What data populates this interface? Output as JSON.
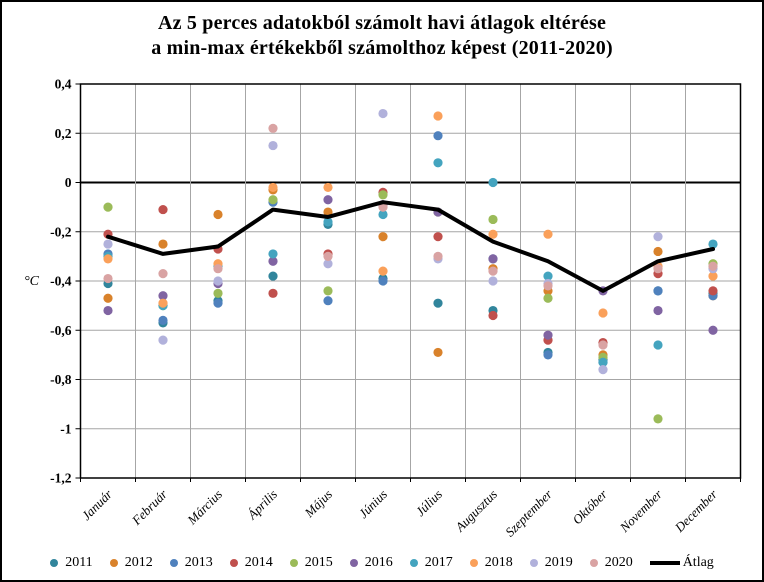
{
  "figure": {
    "title_line1": "Az 5 perces adatokból számolt havi átlagok eltérése",
    "title_line2": "a min-max értékekből számolthoz képest (2011-2020)"
  },
  "chart_data": {
    "type": "scatter",
    "title": "Az 5 perces adatokból számolt havi átlagok eltérése a min-max értékekből számolthoz képest (2011-2020)",
    "ylabel": "°C",
    "xlabel": "",
    "ylim": [
      -1.2,
      0.4
    ],
    "yticks": [
      0.4,
      0.2,
      0,
      -0.2,
      -0.4,
      -0.6,
      -0.8,
      -1,
      -1.2
    ],
    "ytick_labels": [
      "0,4",
      "0,2",
      "0",
      "-0,2",
      "-0,4",
      "-0,6",
      "-0,8",
      "-1",
      "-1,2"
    ],
    "categories": [
      "Január",
      "Február",
      "Március",
      "Április",
      "Május",
      "Június",
      "Július",
      "Augusztus",
      "Szeptember",
      "Október",
      "November",
      "December"
    ],
    "grid": true,
    "legend_position": "bottom",
    "marker_radius": 4.6,
    "grid_color": "#A6A6A6",
    "axis_color": "#000000",
    "series": [
      {
        "name": "2011",
        "color": "#31859C",
        "values": [
          -0.41,
          -0.57,
          -0.48,
          -0.38,
          -0.17,
          -0.39,
          -0.49,
          -0.52,
          -0.69,
          -0.72,
          -0.44,
          -0.45
        ]
      },
      {
        "name": "2012",
        "color": "#D9822B",
        "values": [
          -0.47,
          -0.25,
          -0.13,
          -0.03,
          -0.12,
          -0.22,
          -0.69,
          -0.35,
          -0.44,
          -0.7,
          -0.28,
          -0.46
        ]
      },
      {
        "name": "2013",
        "color": "#4F81BD",
        "values": [
          -0.29,
          -0.56,
          -0.49,
          -0.08,
          -0.48,
          -0.4,
          0.19,
          -0.31,
          -0.7,
          -0.73,
          -0.44,
          -0.46
        ]
      },
      {
        "name": "2014",
        "color": "#C0504D",
        "values": [
          -0.21,
          -0.11,
          -0.27,
          -0.45,
          -0.29,
          -0.04,
          -0.22,
          -0.54,
          -0.64,
          -0.65,
          -0.37,
          -0.44
        ]
      },
      {
        "name": "2015",
        "color": "#9BBB59",
        "values": [
          -0.1,
          -0.5,
          -0.45,
          -0.07,
          -0.44,
          -0.05,
          -0.12,
          -0.15,
          -0.47,
          -0.71,
          -0.96,
          -0.33
        ]
      },
      {
        "name": "2016",
        "color": "#8064A2",
        "values": [
          -0.52,
          -0.46,
          -0.41,
          -0.32,
          -0.07,
          -0.09,
          -0.12,
          -0.31,
          -0.62,
          -0.44,
          -0.52,
          -0.6
        ]
      },
      {
        "name": "2017",
        "color": "#44A4BF",
        "values": [
          -0.3,
          -0.5,
          -0.34,
          -0.29,
          -0.16,
          -0.13,
          0.08,
          0.0,
          -0.38,
          -0.73,
          -0.66,
          -0.25
        ]
      },
      {
        "name": "2018",
        "color": "#FAA05A",
        "values": [
          -0.31,
          -0.49,
          -0.33,
          -0.02,
          -0.02,
          -0.36,
          0.27,
          -0.21,
          -0.21,
          -0.53,
          -0.34,
          -0.38
        ]
      },
      {
        "name": "2019",
        "color": "#B1B1DB",
        "values": [
          -0.25,
          -0.64,
          -0.4,
          0.15,
          -0.33,
          0.28,
          -0.31,
          -0.4,
          -0.41,
          -0.76,
          -0.22,
          -0.35
        ]
      },
      {
        "name": "2020",
        "color": "#D9A3A3",
        "values": [
          -0.39,
          -0.37,
          -0.35,
          0.22,
          -0.3,
          -0.1,
          -0.3,
          -0.36,
          -0.42,
          -0.66,
          -0.35,
          -0.34
        ]
      },
      {
        "name": "Átlag",
        "type": "line",
        "color": "#000000",
        "values": [
          -0.22,
          -0.29,
          -0.26,
          -0.11,
          -0.14,
          -0.08,
          -0.11,
          -0.24,
          -0.32,
          -0.44,
          -0.32,
          -0.27
        ]
      }
    ]
  }
}
